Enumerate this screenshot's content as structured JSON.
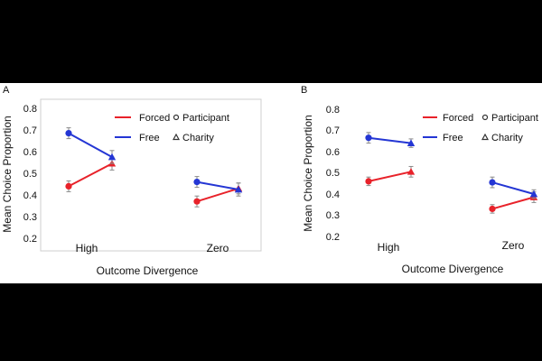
{
  "chart_data": [
    {
      "panel_label": "A",
      "type": "line",
      "categories": [
        "High",
        "Zero"
      ],
      "xlabel": "Outcome Divergence",
      "ylabel": "Mean Choice Proportion",
      "ylim": [
        0.2,
        0.8
      ],
      "yticks": [
        "0.2",
        "0.3",
        "0.4",
        "0.5",
        "0.6",
        "0.7",
        "0.8"
      ],
      "frame": true,
      "grid": false,
      "legend": {
        "placement": "top-right",
        "lines": [
          {
            "label": "Forced",
            "color": "#e8222a"
          },
          {
            "label": "Free",
            "color": "#2436d4"
          }
        ],
        "markers": [
          {
            "label": "Participant",
            "marker": "circle"
          },
          {
            "label": "Charity",
            "marker": "triangle"
          }
        ]
      },
      "series": [
        {
          "name": "Forced",
          "color": "#e8222a",
          "points": [
            {
              "category": "High",
              "recipient": "Participant",
              "value": 0.44,
              "err": 0.025
            },
            {
              "category": "High",
              "recipient": "Charity",
              "value": 0.545,
              "err": 0.03
            },
            {
              "category": "Zero",
              "recipient": "Participant",
              "value": 0.37,
              "err": 0.025
            },
            {
              "category": "Zero",
              "recipient": "Charity",
              "value": 0.43,
              "err": 0.025
            }
          ]
        },
        {
          "name": "Free",
          "color": "#2436d4",
          "points": [
            {
              "category": "High",
              "recipient": "Participant",
              "value": 0.685,
              "err": 0.025
            },
            {
              "category": "High",
              "recipient": "Charity",
              "value": 0.575,
              "err": 0.03
            },
            {
              "category": "Zero",
              "recipient": "Participant",
              "value": 0.46,
              "err": 0.025
            },
            {
              "category": "Zero",
              "recipient": "Charity",
              "value": 0.425,
              "err": 0.03
            }
          ]
        }
      ]
    },
    {
      "panel_label": "B",
      "type": "line",
      "categories": [
        "High",
        "Zero"
      ],
      "xlabel": "Outcome Divergence",
      "ylabel": "Mean Choice Proportion",
      "ylim": [
        0.2,
        0.8
      ],
      "yticks": [
        "0.2",
        "0.3",
        "0.4",
        "0.5",
        "0.6",
        "0.7",
        "0.8"
      ],
      "frame": false,
      "grid": false,
      "legend": {
        "placement": "top-right",
        "lines": [
          {
            "label": "Forced",
            "color": "#e8222a"
          },
          {
            "label": "Free",
            "color": "#2436d4"
          }
        ],
        "markers": [
          {
            "label": "Participant",
            "marker": "circle"
          },
          {
            "label": "Charity",
            "marker": "triangle"
          }
        ]
      },
      "series": [
        {
          "name": "Forced",
          "color": "#e8222a",
          "points": [
            {
              "category": "High",
              "recipient": "Participant",
              "value": 0.46,
              "err": 0.02
            },
            {
              "category": "High",
              "recipient": "Charity",
              "value": 0.505,
              "err": 0.025
            },
            {
              "category": "Zero",
              "recipient": "Participant",
              "value": 0.33,
              "err": 0.02
            },
            {
              "category": "Zero",
              "recipient": "Charity",
              "value": 0.385,
              "err": 0.025
            }
          ]
        },
        {
          "name": "Free",
          "color": "#2436d4",
          "points": [
            {
              "category": "High",
              "recipient": "Participant",
              "value": 0.665,
              "err": 0.025
            },
            {
              "category": "High",
              "recipient": "Charity",
              "value": 0.64,
              "err": 0.02
            },
            {
              "category": "Zero",
              "recipient": "Participant",
              "value": 0.455,
              "err": 0.025
            },
            {
              "category": "Zero",
              "recipient": "Charity",
              "value": 0.4,
              "err": 0.02
            }
          ]
        }
      ]
    }
  ]
}
